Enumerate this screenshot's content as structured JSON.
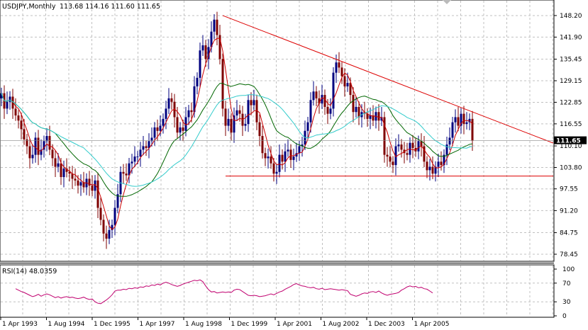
{
  "header": {
    "symbol": "USDJPY,Monthly",
    "ohlc": "113.68 114.16 111.60 111.65"
  },
  "rsi_header": {
    "label": "RSI(14) 48.0359"
  },
  "last_price_tag": "111.65",
  "colors": {
    "background": "#ffffff",
    "grid": "#c0c0c0",
    "bull_candle": "#00007f",
    "bear_candle": "#7f0000",
    "fast_ma": "#cc0000",
    "mid_ma": "#006600",
    "slow_ma": "#33cccc",
    "trendline": "#dd0000",
    "rsi_line": "#c0006f"
  },
  "chart_data": [
    {
      "type": "candlestick",
      "title": "USDJPY,Monthly",
      "subtitle": "113.68 114.16 111.60 111.65",
      "y_ticks": [
        "148.20",
        "141.90",
        "135.45",
        "129.15",
        "122.85",
        "116.55",
        "110.10",
        "103.80",
        "97.55",
        "91.20",
        "84.75",
        "78.45"
      ],
      "y_tick_values": [
        148.2,
        141.9,
        135.45,
        129.15,
        122.85,
        116.55,
        110.1,
        103.8,
        97.55,
        91.2,
        84.75,
        78.45
      ],
      "ylim": [
        77.0,
        151.5
      ],
      "x_labels": [
        "1 Apr 1993",
        "1 Aug 1994",
        "1 Dec 1995",
        "1 Apr 1997",
        "1 Aug 1998",
        "1 Dec 1999",
        "1 Apr 2001",
        "1 Aug 2002",
        "1 Dec 2003",
        "1 Apr 2005"
      ],
      "grid": true,
      "last_close": 111.65,
      "series": [
        {
          "kind": "close",
          "start": "1992-08",
          "frequency": "monthly",
          "values": [
            125.5,
            121.0,
            123.0,
            124.5,
            121.0,
            119.0,
            117.5,
            115.0,
            112.0,
            110.0,
            106.5,
            107.5,
            112.5,
            107.5,
            109.0,
            111.5,
            113.0,
            109.0,
            106.5,
            104.0,
            105.0,
            101.0,
            103.5,
            102.5,
            102.0,
            100.5,
            100.0,
            98.5,
            99.5,
            98.0,
            100.5,
            98.5,
            97.0,
            100.0,
            92.0,
            88.5,
            84.5,
            83.0,
            85.5,
            87.0,
            92.0,
            96.0,
            102.5,
            102.0,
            101.5,
            105.0,
            105.5,
            107.0,
            107.0,
            109.0,
            110.0,
            109.5,
            111.5,
            112.5,
            115.5,
            114.5,
            116.0,
            118.0,
            121.0,
            124.0,
            123.0,
            118.5,
            114.0,
            115.5,
            114.5,
            118.5,
            120.5,
            120.0,
            127.5,
            130.0,
            138.0,
            139.5,
            135.5,
            139.0,
            143.5,
            147.0,
            142.5,
            135.5,
            121.0,
            116.0,
            118.0,
            114.0,
            119.0,
            120.5,
            119.5,
            116.0,
            116.5,
            123.5,
            122.0,
            123.5,
            117.0,
            113.0,
            108.0,
            106.5,
            107.0,
            105.0,
            102.0,
            102.5,
            107.5,
            105.5,
            108.5,
            109.0,
            106.0,
            107.0,
            108.0,
            110.0,
            110.5,
            114.5,
            117.0,
            123.5,
            126.0,
            124.0,
            122.5,
            125.0,
            121.5,
            119.5,
            121.0,
            131.5,
            134.5,
            133.0,
            130.5,
            127.5,
            128.5,
            125.0,
            120.0,
            121.5,
            118.5,
            120.0,
            119.5,
            118.0,
            119.0,
            117.5,
            120.0,
            117.5,
            118.5,
            107.5,
            107.0,
            105.5,
            104.5,
            110.0,
            110.5,
            109.0,
            108.0,
            107.5,
            111.0,
            109.5,
            108.5,
            111.5,
            110.0,
            105.5,
            103.0,
            104.0,
            102.0,
            104.0,
            105.5,
            104.5,
            107.5,
            110.5,
            112.5,
            117.0,
            118.5,
            116.0,
            119.5,
            116.5,
            117.0,
            118.0,
            111.65
          ]
        }
      ]
    },
    {
      "type": "line",
      "title": "RSI(14) 48.0359",
      "y_ticks": [
        "100",
        "70",
        "30",
        "0"
      ],
      "ylim": [
        0,
        100
      ],
      "series": [
        {
          "name": "RSI(14)",
          "start": "1993-01",
          "frequency": "monthly",
          "values": [
            58,
            55,
            52,
            50,
            47,
            44,
            41,
            43,
            46,
            42,
            45,
            47,
            45,
            42,
            39,
            41,
            38,
            40,
            41,
            39,
            40,
            38,
            37,
            38,
            40,
            37,
            35,
            36,
            30,
            27,
            26,
            30,
            34,
            39,
            45,
            53,
            55,
            55,
            57,
            56,
            59,
            58,
            60,
            59,
            62,
            61,
            64,
            63,
            66,
            65,
            68,
            66,
            70,
            72,
            70,
            67,
            65,
            63,
            65,
            68,
            70,
            72,
            74,
            76,
            75,
            77,
            73,
            64,
            56,
            51,
            52,
            49,
            50,
            51,
            50,
            51,
            50,
            55,
            57,
            56,
            52,
            48,
            44,
            43,
            44,
            43,
            41,
            42,
            43,
            45,
            47,
            45,
            48,
            51,
            53,
            57,
            60,
            63,
            67,
            69,
            66,
            64,
            63,
            61,
            60,
            61,
            58,
            57,
            59,
            56,
            57,
            58,
            57,
            56,
            55,
            56,
            55,
            54,
            46,
            44,
            42,
            44,
            47,
            49,
            48,
            51,
            52,
            50,
            53,
            49,
            46,
            44,
            46,
            47,
            48,
            50,
            55,
            58,
            62,
            64,
            62,
            63,
            60,
            61,
            58,
            57,
            53,
            49
          ]
        }
      ]
    }
  ]
}
